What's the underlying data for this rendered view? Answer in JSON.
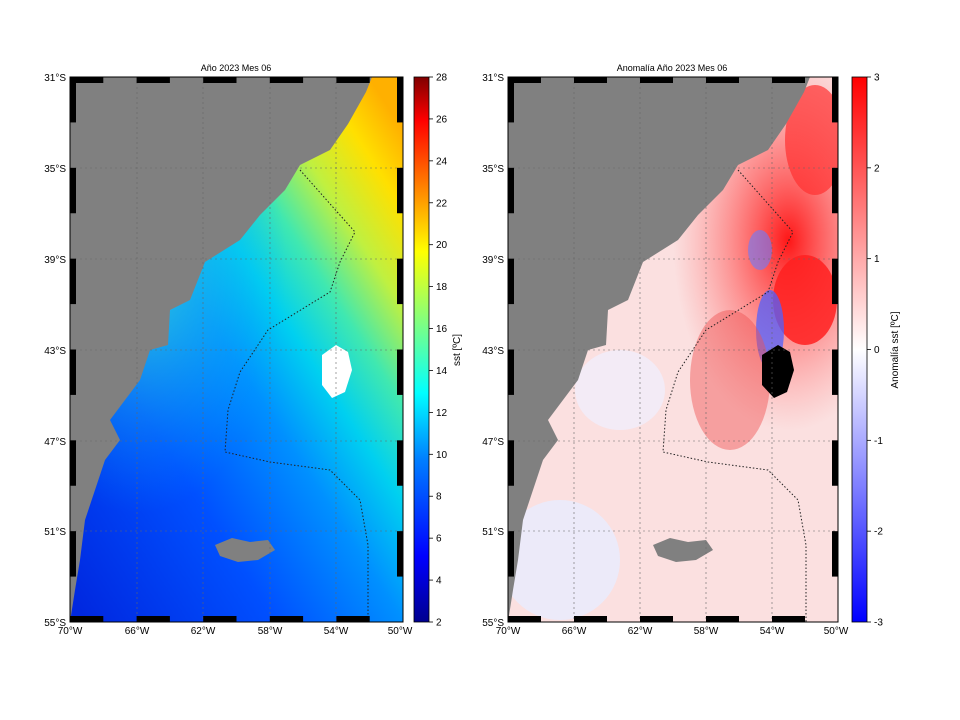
{
  "panels": [
    {
      "id": "sst",
      "title": "Año 2023 Mes 06",
      "colorbar_label": "sst [ºC]",
      "colorbar_ticks": [
        "2",
        "4",
        "6",
        "8",
        "10",
        "12",
        "14",
        "16",
        "18",
        "20",
        "22",
        "24",
        "26",
        "28"
      ],
      "colorbar_range": [
        2,
        28
      ],
      "palette": [
        "#00008f",
        "#0000ff",
        "#0080ff",
        "#00ffff",
        "#80ff80",
        "#ffff00",
        "#ff8000",
        "#ff0000",
        "#800000"
      ]
    },
    {
      "id": "anomaly",
      "title": "Anomalía Año 2023 Mes 06",
      "colorbar_label": "Anomalía sst [ºC]",
      "colorbar_ticks": [
        "-3",
        "-2",
        "-1",
        "0",
        "1",
        "2",
        "3"
      ],
      "colorbar_range": [
        -3,
        3
      ],
      "palette": [
        "#0000ff",
        "#ffffff",
        "#ff0000"
      ]
    }
  ],
  "lat_labels": [
    "31°S",
    "35°S",
    "39°S",
    "43°S",
    "47°S",
    "51°S",
    "55°S"
  ],
  "lon_labels": [
    "70°W",
    "66°W",
    "62°W",
    "58°W",
    "54°W",
    "50°W"
  ],
  "land_color": "#808080",
  "chart_data": [
    {
      "type": "heatmap",
      "title": "Año 2023 Mes 06",
      "variable": "sst [ºC]",
      "xlim": [
        -70,
        -50
      ],
      "ylim": [
        -55,
        -31
      ],
      "color_range": [
        2,
        28
      ],
      "colormap": "jet"
    },
    {
      "type": "heatmap",
      "title": "Anomalía Año 2023 Mes 06",
      "variable": "Anomalía sst [ºC]",
      "xlim": [
        -70,
        -50
      ],
      "ylim": [
        -55,
        -31
      ],
      "color_range": [
        -3,
        3
      ],
      "colormap": "blue-white-red"
    }
  ]
}
